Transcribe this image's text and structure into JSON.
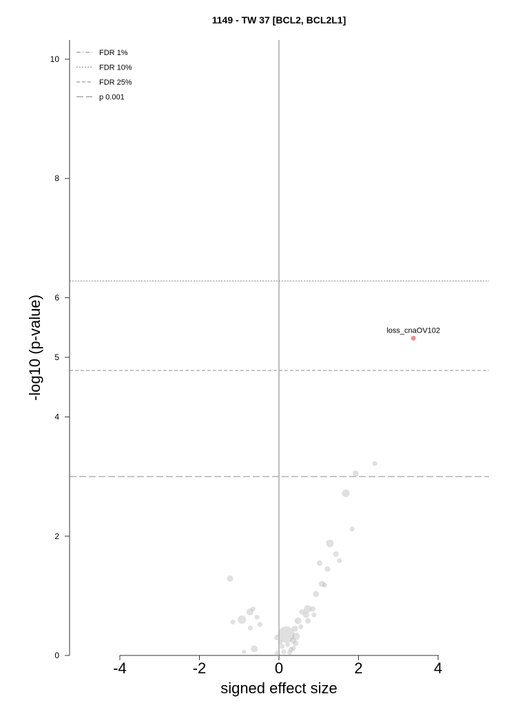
{
  "chart_data": {
    "type": "scatter",
    "title": "1149 - TW 37 [BCL2, BCL2L1]",
    "xlabel": "signed effect size",
    "ylabel": "-log10 (p-value)",
    "xlim": [
      -4,
      4
    ],
    "ylim": [
      0,
      10
    ],
    "x_ticks": [
      "-4",
      "-2",
      "0",
      "2",
      "4"
    ],
    "y_ticks": [
      "0",
      "2",
      "4",
      "5",
      "6",
      "8",
      "10"
    ],
    "grid": false,
    "legend_position": "top-left",
    "thresholds": [
      {
        "name": "FDR 1%",
        "style": "dash-dot",
        "y": null
      },
      {
        "name": "FDR 10%",
        "style": "dotted",
        "y": 6.28
      },
      {
        "name": "FDR 25%",
        "style": "dashed",
        "y": 4.78
      },
      {
        "name": "p 0.001",
        "style": "long-dash",
        "y": 3.0
      }
    ],
    "highlight_color": "#f08080",
    "point_color": "#b4b4b4",
    "points": [
      {
        "x": 3.38,
        "y": 5.32,
        "size": 5,
        "highlight": true,
        "label": "loss_cnaOV102"
      },
      {
        "x": 2.41,
        "y": 3.22,
        "size": 5
      },
      {
        "x": 1.93,
        "y": 3.05,
        "size": 7
      },
      {
        "x": 1.68,
        "y": 2.72,
        "size": 9
      },
      {
        "x": 1.84,
        "y": 2.12,
        "size": 5
      },
      {
        "x": 1.28,
        "y": 1.88,
        "size": 9
      },
      {
        "x": 1.43,
        "y": 1.7,
        "size": 6
      },
      {
        "x": 1.52,
        "y": 1.59,
        "size": 5
      },
      {
        "x": 1.02,
        "y": 1.55,
        "size": 6
      },
      {
        "x": 1.22,
        "y": 1.45,
        "size": 6
      },
      {
        "x": 1.08,
        "y": 1.2,
        "size": 7
      },
      {
        "x": 1.15,
        "y": 1.18,
        "size": 5
      },
      {
        "x": 0.93,
        "y": 1.03,
        "size": 7
      },
      {
        "x": -1.23,
        "y": 1.29,
        "size": 7
      },
      {
        "x": -0.73,
        "y": 0.73,
        "size": 8
      },
      {
        "x": -0.65,
        "y": 0.78,
        "size": 5
      },
      {
        "x": -0.55,
        "y": 0.64,
        "size": 5
      },
      {
        "x": -0.93,
        "y": 0.6,
        "size": 10
      },
      {
        "x": -1.16,
        "y": 0.56,
        "size": 5
      },
      {
        "x": -0.48,
        "y": 0.52,
        "size": 5
      },
      {
        "x": -0.72,
        "y": 0.46,
        "size": 5
      },
      {
        "x": -0.62,
        "y": 0.11,
        "size": 8
      },
      {
        "x": -0.88,
        "y": 0.06,
        "size": 4
      },
      {
        "x": 0.58,
        "y": 0.73,
        "size": 6
      },
      {
        "x": 0.72,
        "y": 0.78,
        "size": 9
      },
      {
        "x": 0.85,
        "y": 0.78,
        "size": 6
      },
      {
        "x": 0.68,
        "y": 0.68,
        "size": 7
      },
      {
        "x": 0.73,
        "y": 0.58,
        "size": 6
      },
      {
        "x": 0.88,
        "y": 0.68,
        "size": 5
      },
      {
        "x": 0.48,
        "y": 0.58,
        "size": 8
      },
      {
        "x": 0.4,
        "y": 0.45,
        "size": 7
      },
      {
        "x": 0.55,
        "y": 0.48,
        "size": 5
      },
      {
        "x": 0.18,
        "y": 0.35,
        "size": 22
      },
      {
        "x": 0.43,
        "y": 0.32,
        "size": 9
      },
      {
        "x": 0.35,
        "y": 0.25,
        "size": 7
      },
      {
        "x": 0.42,
        "y": 0.2,
        "size": 6
      },
      {
        "x": 0.36,
        "y": 0.12,
        "size": 5
      },
      {
        "x": 0.3,
        "y": 0.1,
        "size": 5
      },
      {
        "x": 0.27,
        "y": 0.05,
        "size": 5
      },
      {
        "x": 0.22,
        "y": 0.18,
        "size": 5
      },
      {
        "x": -0.05,
        "y": 0.3,
        "size": 6
      },
      {
        "x": 0.03,
        "y": 0.22,
        "size": 5
      },
      {
        "x": 0.08,
        "y": 0.15,
        "size": 5
      },
      {
        "x": -0.04,
        "y": 0.03,
        "size": 6
      },
      {
        "x": 0.12,
        "y": 0.06,
        "size": 5
      }
    ]
  }
}
